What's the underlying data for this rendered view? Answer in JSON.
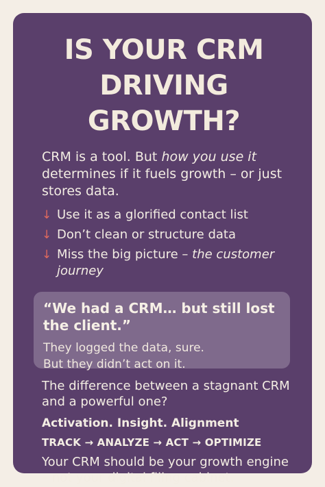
{
  "title": {
    "line1": "IS YOUR CRM",
    "line2": "DRIVING GROWTH?"
  },
  "intro": {
    "text_before": "CRM is a tool. But ",
    "text_emphasis": "how you use it",
    "text_after": " determines if it fuels growth – or just stores data."
  },
  "points": [
    {
      "icon": "down-arrow-icon",
      "arrow": "↓",
      "text": "Use it as a glorified contact list",
      "emphasis": ""
    },
    {
      "icon": "down-arrow-icon",
      "arrow": "↓",
      "text": "Don’t clean or structure data",
      "emphasis": ""
    },
    {
      "icon": "down-arrow-icon",
      "arrow": "↓",
      "text": "Miss the big picture – ",
      "emphasis": "the customer journey"
    }
  ],
  "quote": {
    "headline": "“We had a CRM… but still lost the client.”",
    "line1": "They logged the data, sure.",
    "line2": "But they didn’t act on it."
  },
  "difference": "The difference between a stagnant CRM and a powerful one?",
  "pillars": "Activation. Insight. Alignment",
  "flow": "TRACK → ANALYZE → ACT → OPTIMIZE",
  "closing": "Your CRM should be your growth engine – not your digital filing cabinet.",
  "colors": {
    "card": "#5a3f6b",
    "quote_box": "#7f6a8c",
    "arrow": "#e06a5e",
    "background": "#f4eee6"
  }
}
